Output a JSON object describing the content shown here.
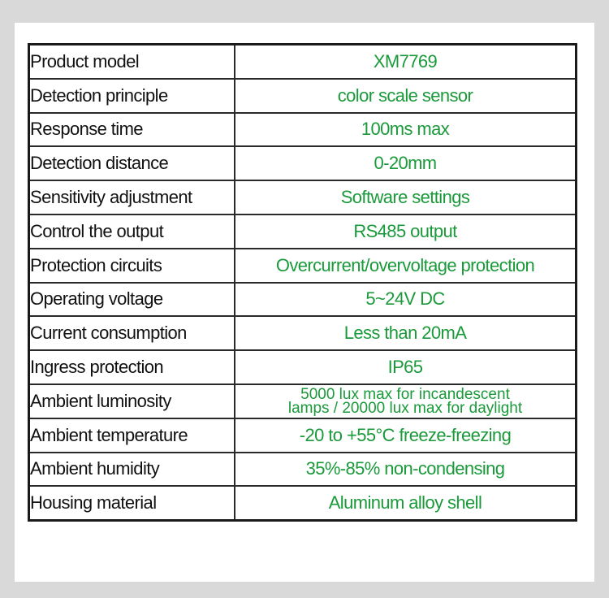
{
  "table": {
    "rows": [
      {
        "label": "Product model",
        "value": "XM7769"
      },
      {
        "label": "Detection principle",
        "value": "color scale sensor"
      },
      {
        "label": "Response time",
        "value": "100ms max"
      },
      {
        "label": "Detection distance",
        "value": "0-20mm"
      },
      {
        "label": "Sensitivity adjustment",
        "value": "Software settings"
      },
      {
        "label": "Control the output",
        "value": "RS485 output"
      },
      {
        "label": "Protection circuits",
        "value": "Overcurrent/overvoltage protection"
      },
      {
        "label": "Operating voltage",
        "value": "5~24V DC"
      },
      {
        "label": "Current consumption",
        "value": "Less than 20mA"
      },
      {
        "label": "Ingress protection",
        "value": "IP65"
      },
      {
        "label": "Ambient luminosity",
        "value_line1": "5000 lux max for incandescent",
        "value_line2": "lamps / 20000 lux max for daylight"
      },
      {
        "label": "Ambient temperature",
        "value": "-20 to +55°C freeze-freezing"
      },
      {
        "label": "Ambient humidity",
        "value": "35%-85% non-condensing"
      },
      {
        "label": "Housing material",
        "value": "Aluminum alloy shell"
      }
    ]
  },
  "colors": {
    "background": "#d9d9d9",
    "card": "#ffffff",
    "label_text": "#111111",
    "value_text": "#1a9a3a",
    "border": "#1a1a1a"
  }
}
